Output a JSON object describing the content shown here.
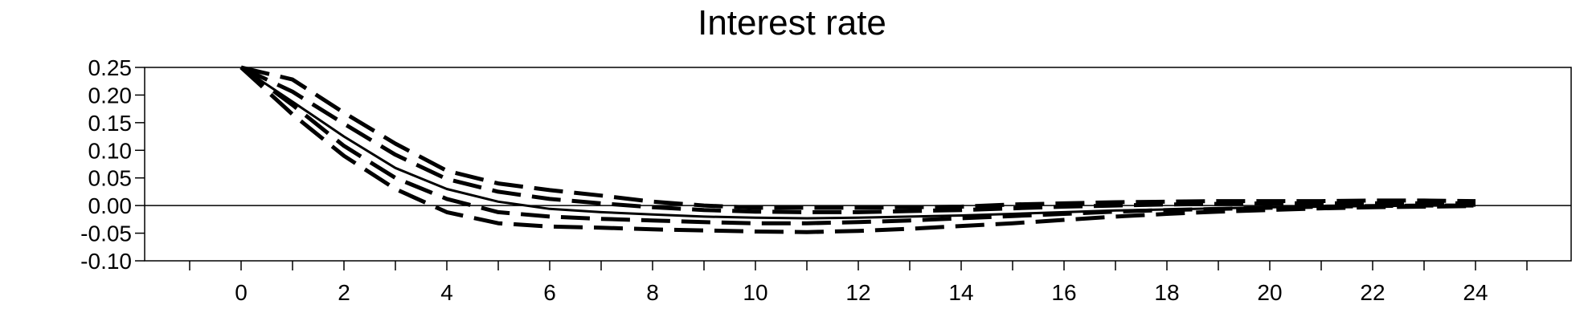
{
  "chart_data": {
    "type": "line",
    "title": "Interest rate",
    "xlabel": "",
    "ylabel": "",
    "xlim": [
      -2,
      26
    ],
    "ylim": [
      -0.1,
      0.25
    ],
    "x_ticks": [
      0,
      2,
      4,
      6,
      8,
      10,
      12,
      14,
      16,
      18,
      20,
      22,
      24
    ],
    "y_ticks": [
      0.25,
      0.2,
      0.15,
      0.1,
      0.05,
      0.0,
      -0.05,
      -0.1
    ],
    "y_tick_labels": [
      "0.25",
      "0.20",
      "0.15",
      "0.10",
      "0.05",
      "0.00",
      "-0.05",
      "-0.10"
    ],
    "zero_line": true,
    "grid": false,
    "x": [
      0,
      1,
      2,
      3,
      4,
      5,
      6,
      7,
      8,
      9,
      10,
      11,
      12,
      13,
      14,
      15,
      16,
      17,
      18,
      19,
      20,
      21,
      22,
      23,
      24
    ],
    "series": [
      {
        "style": "solid",
        "values": [
          0.25,
          0.188,
          0.125,
          0.068,
          0.03,
          0.007,
          -0.006,
          -0.012,
          -0.016,
          -0.02,
          -0.022,
          -0.023,
          -0.022,
          -0.02,
          -0.018,
          -0.015,
          -0.012,
          -0.009,
          -0.007,
          -0.005,
          -0.003,
          -0.002,
          -0.001,
          0.0,
          0.0
        ]
      },
      {
        "style": "dashed",
        "values": [
          0.25,
          0.228,
          0.168,
          0.112,
          0.063,
          0.04,
          0.028,
          0.018,
          0.007,
          0.0,
          -0.004,
          -0.004,
          -0.004,
          -0.003,
          -0.002,
          0.002,
          0.004,
          0.006,
          0.007,
          0.008,
          0.008,
          0.008,
          0.009,
          0.009,
          0.008
        ]
      },
      {
        "style": "dashed",
        "values": [
          0.25,
          0.206,
          0.148,
          0.092,
          0.048,
          0.025,
          0.012,
          0.004,
          -0.003,
          -0.008,
          -0.011,
          -0.012,
          -0.012,
          -0.01,
          -0.008,
          -0.005,
          -0.002,
          0.0,
          0.002,
          0.003,
          0.004,
          0.004,
          0.004,
          0.004,
          0.004
        ]
      },
      {
        "style": "dashed",
        "values": [
          0.25,
          0.182,
          0.108,
          0.05,
          0.012,
          -0.012,
          -0.02,
          -0.024,
          -0.027,
          -0.03,
          -0.032,
          -0.032,
          -0.03,
          -0.027,
          -0.023,
          -0.019,
          -0.015,
          -0.011,
          -0.008,
          -0.006,
          -0.004,
          -0.002,
          -0.001,
          0.0,
          0.0
        ]
      },
      {
        "style": "dashed",
        "values": [
          0.25,
          0.165,
          0.09,
          0.03,
          -0.012,
          -0.032,
          -0.038,
          -0.04,
          -0.043,
          -0.045,
          -0.047,
          -0.048,
          -0.046,
          -0.042,
          -0.037,
          -0.032,
          -0.026,
          -0.02,
          -0.015,
          -0.011,
          -0.008,
          -0.005,
          -0.003,
          -0.002,
          -0.001
        ]
      }
    ]
  }
}
